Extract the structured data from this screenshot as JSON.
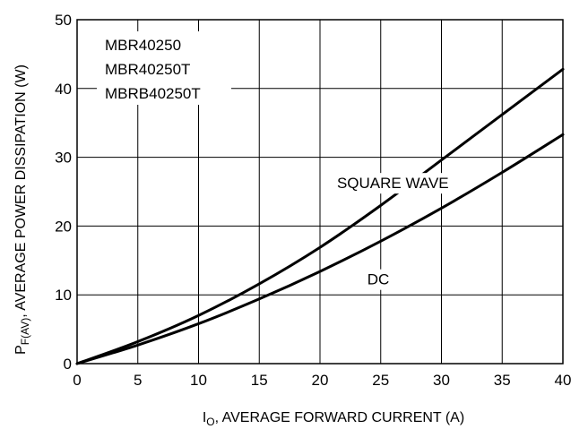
{
  "chart_data": {
    "type": "line",
    "xlabel": {
      "main": "I",
      "sub": "O",
      "rest": ", AVERAGE FORWARD CURRENT (A)"
    },
    "ylabel": {
      "main": "P",
      "sub": "F(AV)",
      "rest": ", AVERAGE POWER DISSIPATION (W)"
    },
    "xlim": [
      0,
      40
    ],
    "ylim": [
      0,
      50
    ],
    "x_ticks": [
      "0",
      "5",
      "10",
      "15",
      "20",
      "25",
      "30",
      "35",
      "40"
    ],
    "y_ticks": [
      "0",
      "10",
      "20",
      "30",
      "40",
      "50"
    ],
    "grid": true,
    "part_numbers": [
      "MBR40250",
      "MBR40250T",
      "MBRB40250T"
    ],
    "series": [
      {
        "name": "SQUARE WAVE",
        "x": [
          0,
          5,
          10,
          15,
          20,
          25,
          30,
          35,
          40
        ],
        "y": [
          0,
          3.2,
          7.0,
          11.6,
          16.9,
          23.0,
          29.6,
          36.2,
          42.8
        ]
      },
      {
        "name": "DC",
        "x": [
          0,
          5,
          10,
          15,
          20,
          25,
          30,
          35,
          40
        ],
        "y": [
          0,
          2.7,
          5.8,
          9.4,
          13.4,
          17.8,
          22.6,
          27.8,
          33.3
        ]
      }
    ],
    "annotations": [
      {
        "text": "SQUARE WAVE",
        "x": 26,
        "y": 25.5
      },
      {
        "text": "DC",
        "x": 24.8,
        "y": 11.5
      }
    ]
  }
}
